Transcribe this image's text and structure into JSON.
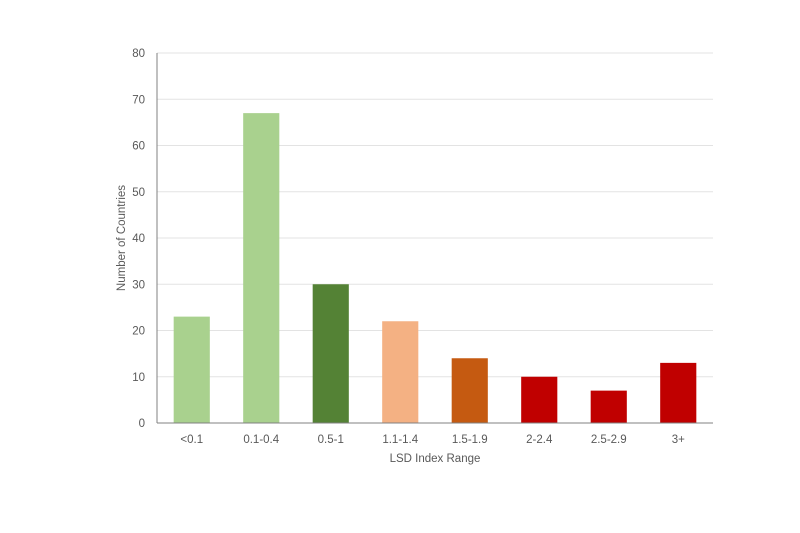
{
  "chart_data": {
    "type": "bar",
    "title": "",
    "xlabel": "LSD Index Range",
    "ylabel": "Number of Countries",
    "categories": [
      "<0.1",
      "0.1-0.4",
      "0.5-1",
      "1.1-1.4",
      "1.5-1.9",
      "2-2.4",
      "2.5-2.9",
      "3+"
    ],
    "values": [
      23,
      67,
      30,
      22,
      14,
      10,
      7,
      13
    ],
    "colors": [
      "#a9d18e",
      "#a9d18e",
      "#548235",
      "#f4b183",
      "#c55a11",
      "#c00000",
      "#c00000",
      "#c00000"
    ],
    "ylim": [
      0,
      80
    ],
    "yticks": [
      0,
      10,
      20,
      30,
      40,
      50,
      60,
      70,
      80
    ],
    "grid": true,
    "legend": "none"
  }
}
